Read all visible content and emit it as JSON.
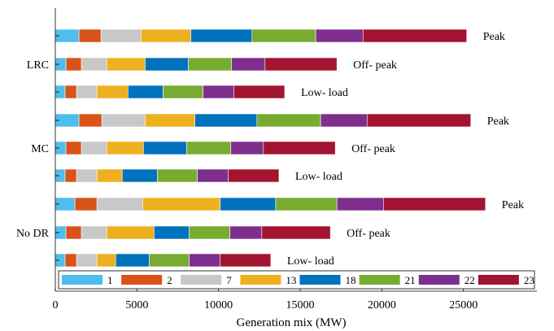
{
  "chart_data": {
    "type": "bar",
    "orientation": "horizontal",
    "stacked": true,
    "xlabel": "Generation mix (MW)",
    "xlim": [
      0,
      29500
    ],
    "xticks": [
      0,
      5000,
      10000,
      15000,
      20000,
      25000
    ],
    "grid": false,
    "legend_position": "bottom-inside",
    "groups": [
      {
        "label": "LRC",
        "rows": [
          "Peak",
          "Off- peak",
          "Low- load"
        ]
      },
      {
        "label": "MC",
        "rows": [
          "Peak",
          "Off- peak",
          "Low- load"
        ]
      },
      {
        "label": "No DR",
        "rows": [
          "Peak",
          "Off- peak",
          "Low- load"
        ]
      }
    ],
    "series": [
      {
        "name": "1",
        "color": "#4DBEEE",
        "values": [
          [
            1450,
            650,
            600
          ],
          [
            1450,
            650,
            600
          ],
          [
            1200,
            650,
            600
          ]
        ]
      },
      {
        "name": "2",
        "color": "#D95319",
        "values": [
          [
            1350,
            950,
            700
          ],
          [
            1400,
            950,
            700
          ],
          [
            1350,
            950,
            700
          ]
        ]
      },
      {
        "name": "7",
        "color": "#C8C8C8",
        "values": [
          [
            2450,
            1550,
            1250
          ],
          [
            2650,
            1550,
            1250
          ],
          [
            2800,
            1550,
            1250
          ]
        ]
      },
      {
        "name": "13",
        "color": "#EDB120",
        "values": [
          [
            3050,
            2350,
            1900
          ],
          [
            3050,
            2250,
            1550
          ],
          [
            4750,
            2900,
            1150
          ]
        ]
      },
      {
        "name": "18",
        "color": "#0072BD",
        "values": [
          [
            3750,
            2650,
            2150
          ],
          [
            3800,
            2650,
            2150
          ],
          [
            3400,
            2150,
            2050
          ]
        ]
      },
      {
        "name": "21",
        "color": "#77AC30",
        "values": [
          [
            3900,
            2650,
            2450
          ],
          [
            3900,
            2700,
            2450
          ],
          [
            3750,
            2500,
            2450
          ]
        ]
      },
      {
        "name": "22",
        "color": "#7E2F8E",
        "values": [
          [
            2900,
            2050,
            1900
          ],
          [
            2850,
            2000,
            1900
          ],
          [
            2850,
            1950,
            1900
          ]
        ]
      },
      {
        "name": "23",
        "color": "#A2142F",
        "values": [
          [
            6350,
            4400,
            3100
          ],
          [
            6350,
            4400,
            3100
          ],
          [
            6250,
            4200,
            3100
          ]
        ]
      }
    ]
  }
}
